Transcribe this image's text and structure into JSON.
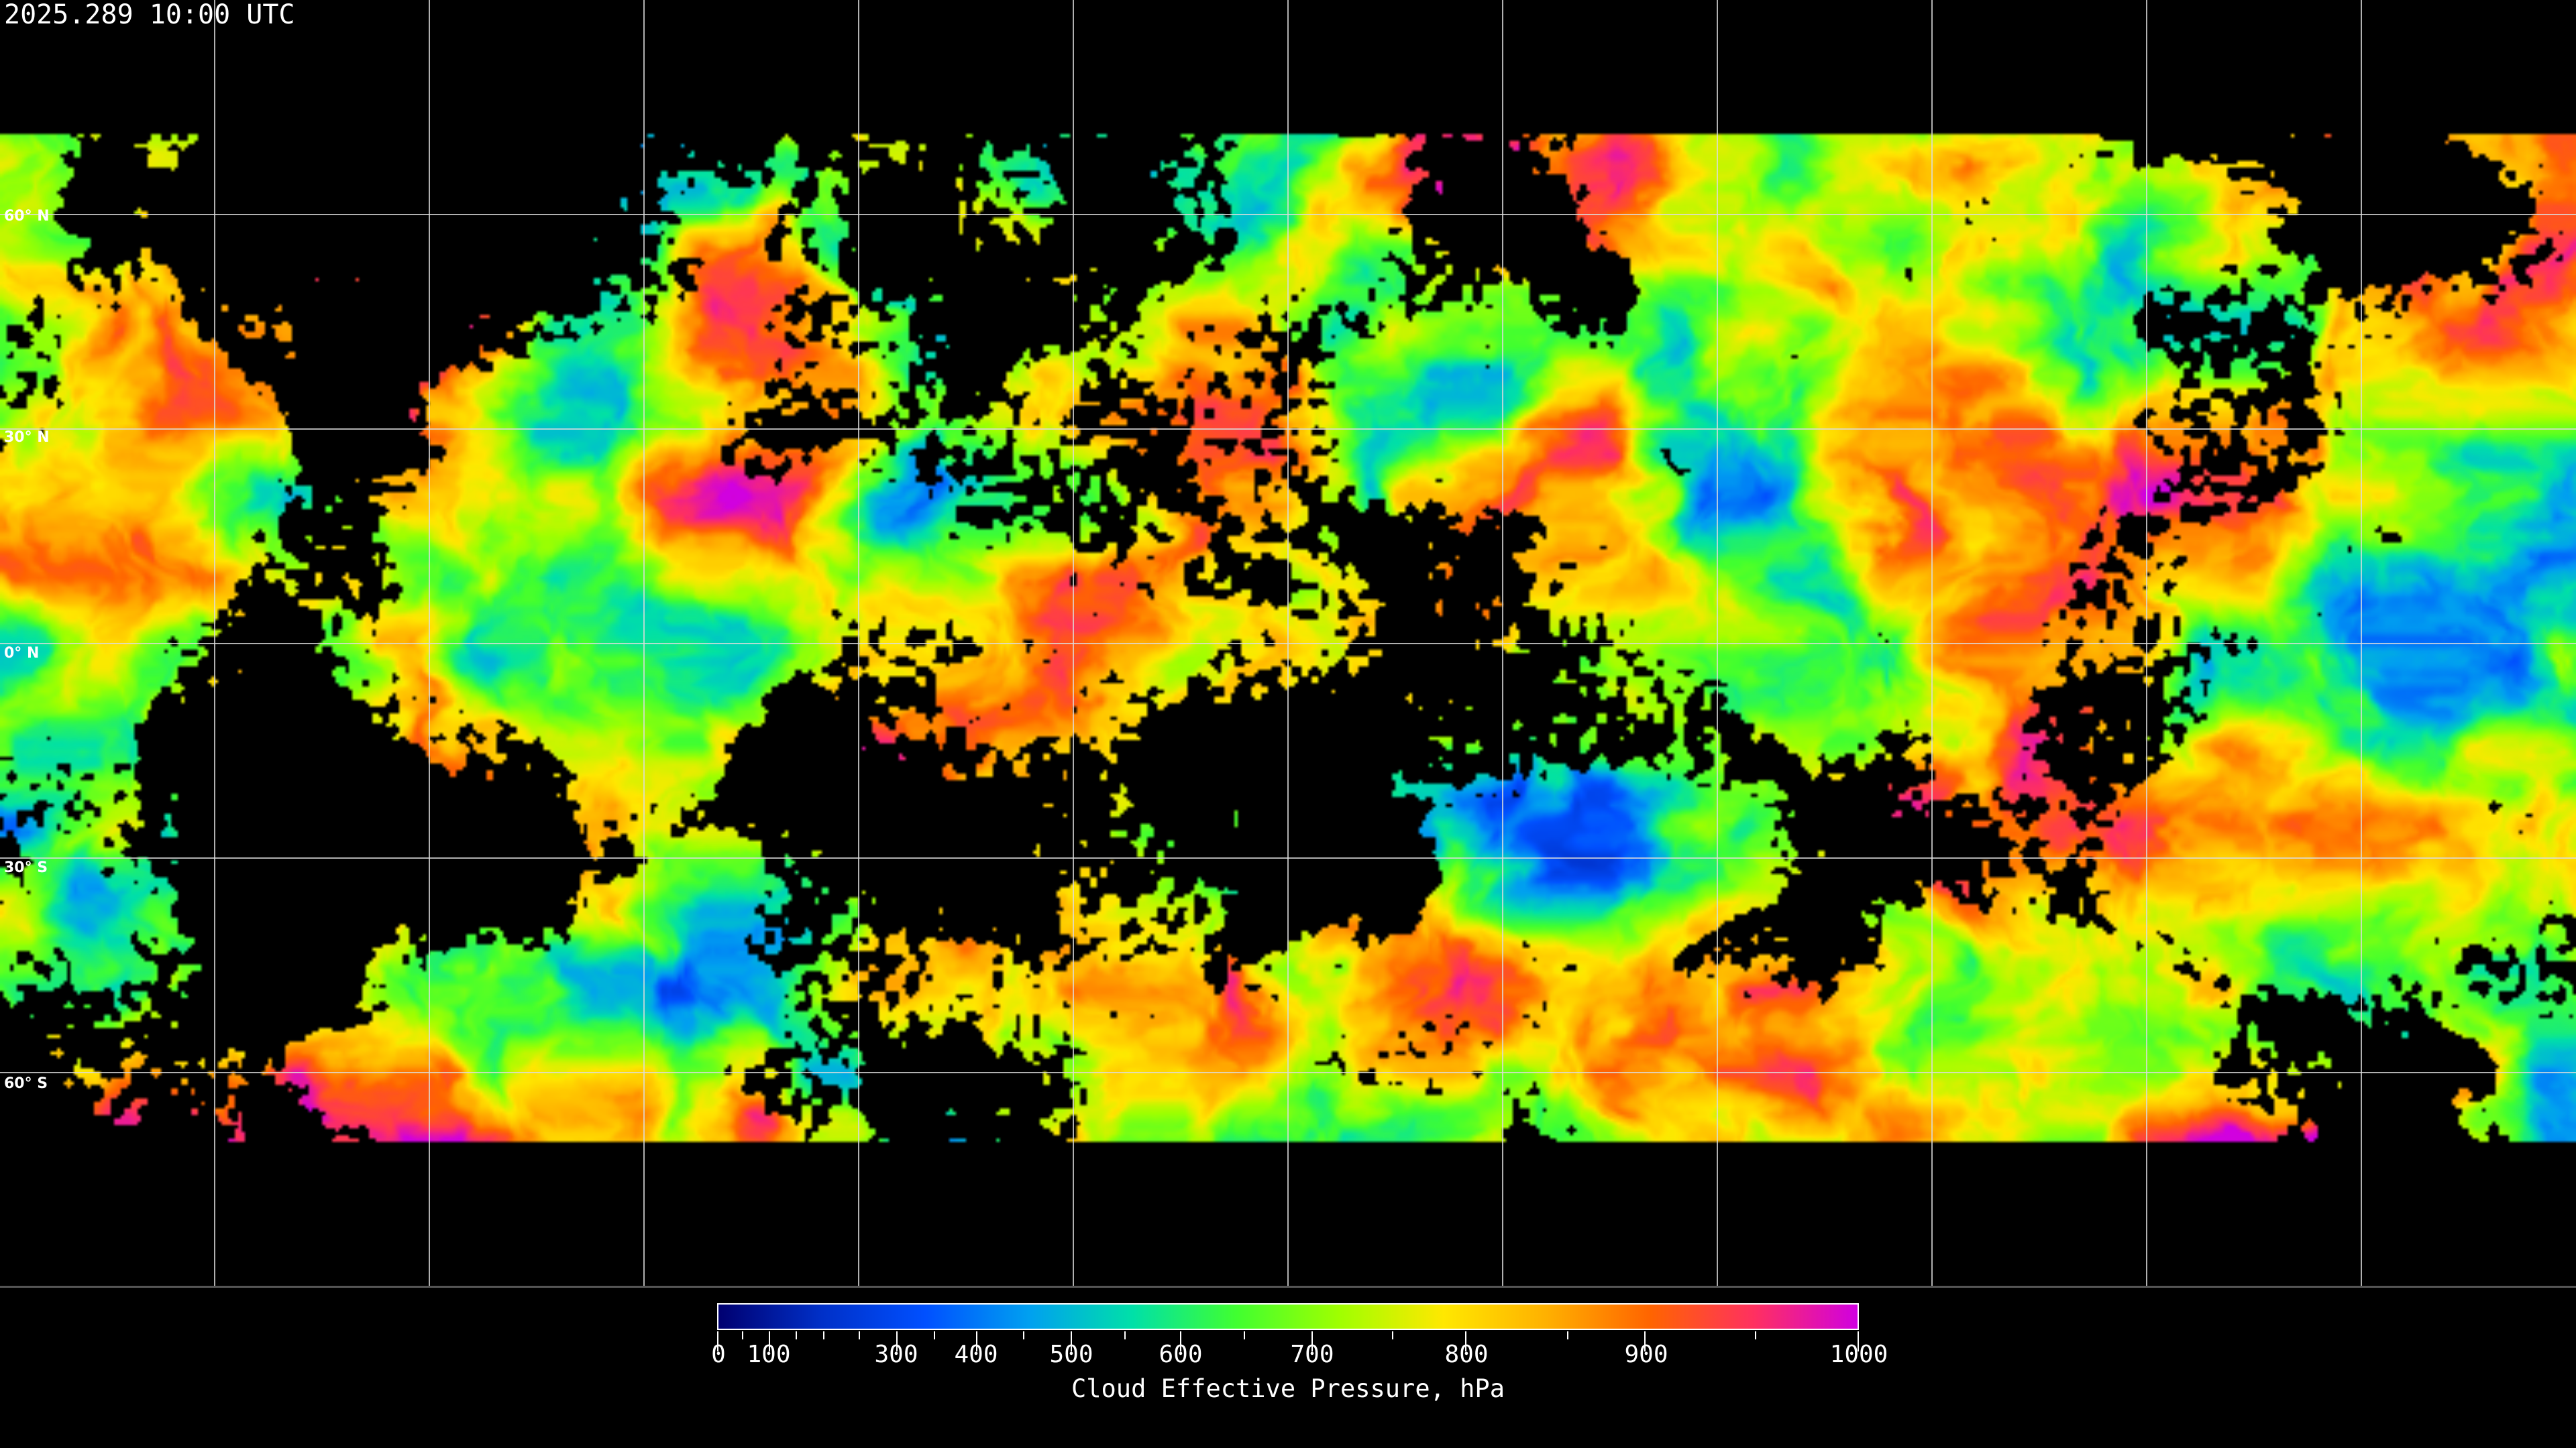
{
  "title": "2025.289 10:00 UTC",
  "map": {
    "projection": "equirectangular",
    "lat_labels": [
      "60° N",
      "30° N",
      "0° N",
      "30° S",
      "60° S"
    ],
    "gridlines": true
  },
  "colorbar": {
    "label": "Cloud Effective Pressure, hPa",
    "ticks": [
      "0",
      "100",
      "300",
      "400",
      "500",
      "600",
      "700",
      "800",
      "900",
      "1000"
    ],
    "range": [
      0,
      1000
    ],
    "colors": [
      "#000070",
      "#0030c8",
      "#0050ff",
      "#00a0f0",
      "#00e0a8",
      "#40ff30",
      "#a0ff00",
      "#ffe800",
      "#ffb000",
      "#ff6400",
      "#ff3060",
      "#d000e0"
    ]
  }
}
